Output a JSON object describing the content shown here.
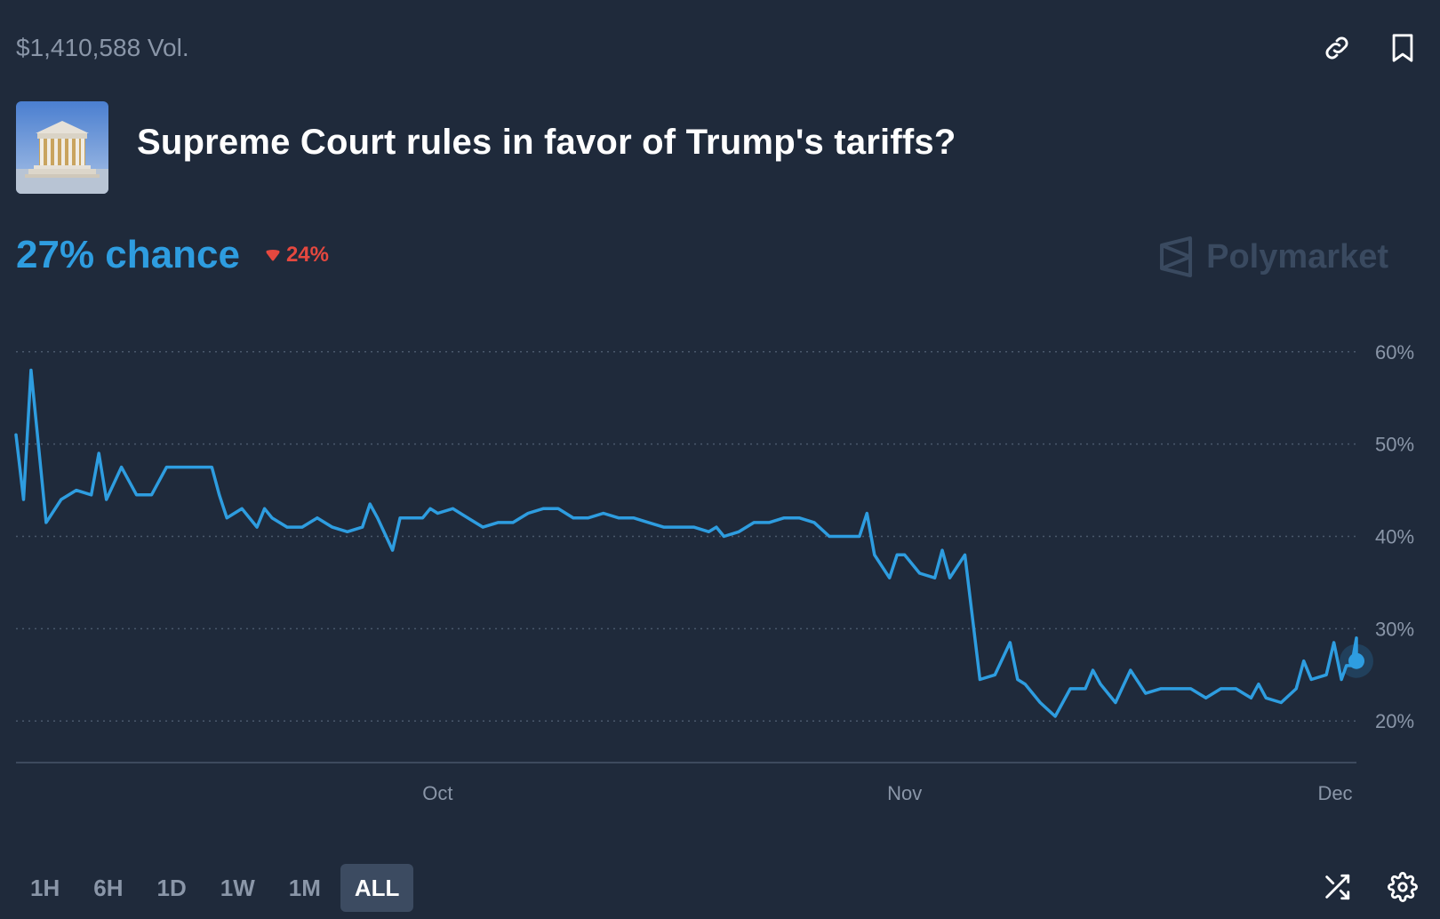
{
  "header": {
    "volume": "$1,410,588 Vol.",
    "title": "Supreme Court rules in favor of Trump's tariffs?",
    "link_icon": "link-icon",
    "bookmark_icon": "bookmark-icon",
    "image_icon": "supreme-court-image"
  },
  "summary": {
    "chance": "27% chance",
    "change": "24%",
    "change_direction": "down",
    "chance_color": "#2e9de0",
    "change_color": "#e5483f"
  },
  "watermark": {
    "text": "Polymarket"
  },
  "chart_data": {
    "type": "line",
    "title": "",
    "xlabel": "",
    "ylabel": "",
    "x_ticks": [
      {
        "label": "Oct",
        "date": "2025-10-01"
      },
      {
        "label": "Nov",
        "date": "2025-11-01"
      },
      {
        "label": "Dec",
        "date": "2025-12-01"
      }
    ],
    "y_ticks": [
      {
        "label": "60%",
        "value": 60
      },
      {
        "label": "50%",
        "value": 50
      },
      {
        "label": "40%",
        "value": 40
      },
      {
        "label": "30%",
        "value": 30
      },
      {
        "label": "20%",
        "value": 20
      }
    ],
    "ylim": [
      18,
      62
    ],
    "xlim": [
      "2025-09-03",
      "2025-12-01"
    ],
    "grid": true,
    "line_color": "#2e9de0",
    "series": [
      {
        "values": [
          [
            "2025-09-03",
            51
          ],
          [
            "2025-09-03",
            44
          ],
          [
            "2025-09-04",
            58
          ],
          [
            "2025-09-05",
            41.5
          ],
          [
            "2025-09-06",
            44
          ],
          [
            "2025-09-07",
            45
          ],
          [
            "2025-09-08",
            44.5
          ],
          [
            "2025-09-08",
            49
          ],
          [
            "2025-09-09",
            44
          ],
          [
            "2025-09-10",
            47.5
          ],
          [
            "2025-09-11",
            44.5
          ],
          [
            "2025-09-12",
            44.5
          ],
          [
            "2025-09-13",
            47.5
          ],
          [
            "2025-09-15",
            47.5
          ],
          [
            "2025-09-16",
            47.5
          ],
          [
            "2025-09-16",
            44.5
          ],
          [
            "2025-09-17",
            42
          ],
          [
            "2025-09-18",
            43
          ],
          [
            "2025-09-19",
            41
          ],
          [
            "2025-09-19",
            43
          ],
          [
            "2025-09-20",
            42
          ],
          [
            "2025-09-21",
            41
          ],
          [
            "2025-09-22",
            41
          ],
          [
            "2025-09-23",
            42
          ],
          [
            "2025-09-24",
            41
          ],
          [
            "2025-09-25",
            40.5
          ],
          [
            "2025-09-26",
            41
          ],
          [
            "2025-09-26",
            43.5
          ],
          [
            "2025-09-27",
            42
          ],
          [
            "2025-09-28",
            38.5
          ],
          [
            "2025-09-28",
            42
          ],
          [
            "2025-09-29",
            42
          ],
          [
            "2025-09-30",
            42
          ],
          [
            "2025-09-30",
            43
          ],
          [
            "2025-10-01",
            42.5
          ],
          [
            "2025-10-02",
            43
          ],
          [
            "2025-10-03",
            42
          ],
          [
            "2025-10-04",
            41
          ],
          [
            "2025-10-05",
            41.5
          ],
          [
            "2025-10-06",
            41.5
          ],
          [
            "2025-10-07",
            42.5
          ],
          [
            "2025-10-08",
            43
          ],
          [
            "2025-10-09",
            43
          ],
          [
            "2025-10-10",
            42
          ],
          [
            "2025-10-11",
            42
          ],
          [
            "2025-10-12",
            42.5
          ],
          [
            "2025-10-13",
            42
          ],
          [
            "2025-10-14",
            42
          ],
          [
            "2025-10-15",
            41.5
          ],
          [
            "2025-10-16",
            41
          ],
          [
            "2025-10-17",
            41
          ],
          [
            "2025-10-18",
            41
          ],
          [
            "2025-10-19",
            40.5
          ],
          [
            "2025-10-19",
            41
          ],
          [
            "2025-10-20",
            40
          ],
          [
            "2025-10-21",
            40.5
          ],
          [
            "2025-10-22",
            41.5
          ],
          [
            "2025-10-23",
            41.5
          ],
          [
            "2025-10-24",
            42
          ],
          [
            "2025-10-25",
            42
          ],
          [
            "2025-10-26",
            41.5
          ],
          [
            "2025-10-27",
            40
          ],
          [
            "2025-10-28",
            40
          ],
          [
            "2025-10-29",
            40
          ],
          [
            "2025-10-29",
            42.5
          ],
          [
            "2025-10-30",
            38
          ],
          [
            "2025-10-31",
            35.5
          ],
          [
            "2025-10-31",
            38
          ],
          [
            "2025-11-01",
            38
          ],
          [
            "2025-11-02",
            36
          ],
          [
            "2025-11-03",
            35.5
          ],
          [
            "2025-11-03",
            38.5
          ],
          [
            "2025-11-04",
            35.5
          ],
          [
            "2025-11-05",
            38
          ],
          [
            "2025-11-06",
            24.5
          ],
          [
            "2025-11-07",
            25
          ],
          [
            "2025-11-08",
            28.5
          ],
          [
            "2025-11-08",
            24.5
          ],
          [
            "2025-11-09",
            24
          ],
          [
            "2025-11-10",
            22
          ],
          [
            "2025-11-11",
            20.5
          ],
          [
            "2025-11-12",
            23.5
          ],
          [
            "2025-11-13",
            23.5
          ],
          [
            "2025-11-13",
            25.5
          ],
          [
            "2025-11-14",
            24
          ],
          [
            "2025-11-15",
            22
          ],
          [
            "2025-11-16",
            25.5
          ],
          [
            "2025-11-17",
            23
          ],
          [
            "2025-11-18",
            23.5
          ],
          [
            "2025-11-19",
            23.5
          ],
          [
            "2025-11-20",
            23.5
          ],
          [
            "2025-11-21",
            22.5
          ],
          [
            "2025-11-22",
            23.5
          ],
          [
            "2025-11-23",
            23.5
          ],
          [
            "2025-11-24",
            22.5
          ],
          [
            "2025-11-24",
            24
          ],
          [
            "2025-11-25",
            22.5
          ],
          [
            "2025-11-26",
            22
          ],
          [
            "2025-11-27",
            23.5
          ],
          [
            "2025-11-27",
            26.5
          ],
          [
            "2025-11-28",
            24.5
          ],
          [
            "2025-11-29",
            25
          ],
          [
            "2025-11-29",
            28.5
          ],
          [
            "2025-11-30",
            24.5
          ],
          [
            "2025-11-30",
            26
          ],
          [
            "2025-11-30",
            26
          ],
          [
            "2025-12-01",
            29
          ],
          [
            "2025-12-01",
            27
          ],
          [
            "2025-12-01",
            28
          ],
          [
            "2025-12-01",
            27.5
          ],
          [
            "2025-12-01",
            26.5
          ]
        ]
      }
    ],
    "last_point": {
      "x": "2025-12-01",
      "y": 26.5
    }
  },
  "timeframes": [
    {
      "label": "1H",
      "active": false
    },
    {
      "label": "6H",
      "active": false
    },
    {
      "label": "1D",
      "active": false
    },
    {
      "label": "1W",
      "active": false
    },
    {
      "label": "1M",
      "active": false
    },
    {
      "label": "ALL",
      "active": true
    }
  ],
  "controls": {
    "shuffle_icon": "shuffle-icon",
    "settings_icon": "gear-icon"
  }
}
